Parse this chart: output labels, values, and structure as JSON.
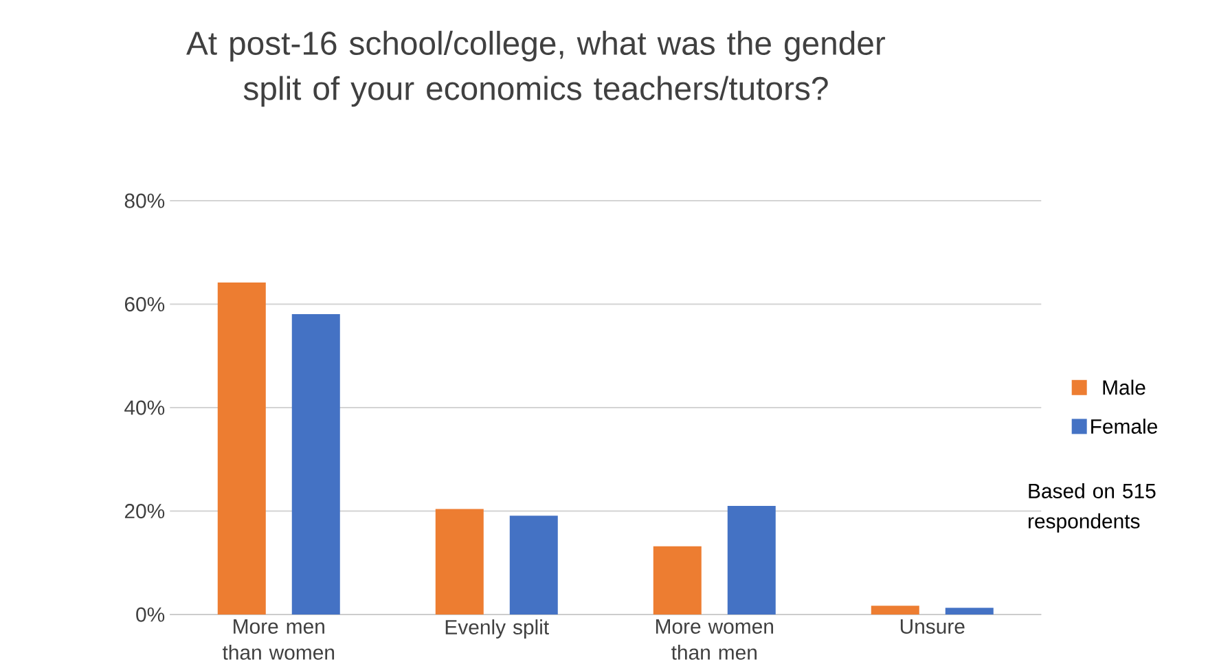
{
  "chart_data": {
    "type": "bar",
    "title": "At post-16 school/college, what was the gender split of your economics teachers/tutors?",
    "categories": [
      "More men than women",
      "Evenly split",
      "More women than men",
      "Unsure"
    ],
    "series": [
      {
        "name": "Male",
        "color": "#ed7d31",
        "values": [
          64.2,
          20.4,
          13.2,
          1.7
        ]
      },
      {
        "name": "Female",
        "color": "#4472c4",
        "values": [
          58.1,
          19.1,
          21.0,
          1.3
        ]
      }
    ],
    "ylim": [
      0,
      80
    ],
    "yticks": [
      {
        "value": 0,
        "label": "0%"
      },
      {
        "value": 20,
        "label": "20%"
      },
      {
        "value": 40,
        "label": "40%"
      },
      {
        "value": 60,
        "label": "60%"
      },
      {
        "value": 80,
        "label": "80%"
      }
    ],
    "grid": "y",
    "legend": "right",
    "annotations": [
      "Based on 515 respondents"
    ]
  }
}
